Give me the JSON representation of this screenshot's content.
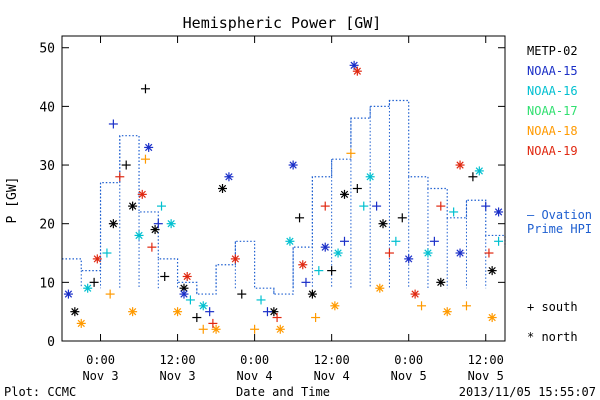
{
  "chart_data": {
    "type": "scatter",
    "title": "Hemispheric Power [GW]",
    "ylabel": "P [GW]",
    "xlabel": "Date and Time",
    "ylim": [
      0,
      52
    ],
    "yticks": [
      0,
      10,
      20,
      30,
      40,
      50
    ],
    "xlim": [
      "2013-11-02 18:00",
      "2013-11-05 15:00"
    ],
    "xticks": [
      {
        "x": "2013-11-03 00:00",
        "time": "0:00",
        "date": "Nov 3"
      },
      {
        "x": "2013-11-03 12:00",
        "time": "12:00",
        "date": "Nov 3"
      },
      {
        "x": "2013-11-04 00:00",
        "time": "0:00",
        "date": "Nov 4"
      },
      {
        "x": "2013-11-04 12:00",
        "time": "12:00",
        "date": "Nov 4"
      },
      {
        "x": "2013-11-05 00:00",
        "time": "0:00",
        "date": "Nov 5"
      },
      {
        "x": "2013-11-05 12:00",
        "time": "12:00",
        "date": "Nov 5"
      }
    ],
    "legend_placement": "right",
    "ovation": {
      "name": "Ovation Prime HPI",
      "label_lines": [
        "— Ovation",
        "Prime HPI"
      ],
      "color": "#1e5fd0",
      "style": "dotted-step",
      "x": [
        "2013-11-02 18:00",
        "2013-11-02 21:00",
        "2013-11-03 00:00",
        "2013-11-03 03:00",
        "2013-11-03 06:00",
        "2013-11-03 09:00",
        "2013-11-03 12:00",
        "2013-11-03 15:00",
        "2013-11-03 18:00",
        "2013-11-03 21:00",
        "2013-11-04 00:00",
        "2013-11-04 03:00",
        "2013-11-04 06:00",
        "2013-11-04 09:00",
        "2013-11-04 12:00",
        "2013-11-04 15:00",
        "2013-11-04 18:00",
        "2013-11-04 21:00",
        "2013-11-05 00:00",
        "2013-11-05 03:00",
        "2013-11-05 06:00",
        "2013-11-05 09:00",
        "2013-11-05 12:00",
        "2013-11-05 15:00"
      ],
      "y": [
        14,
        12,
        27,
        35,
        22,
        14,
        10,
        8,
        13,
        17,
        9,
        8,
        16,
        28,
        31,
        38,
        40,
        41,
        28,
        26,
        21,
        24,
        18,
        16
      ]
    },
    "series": [
      {
        "name": "METP-02",
        "color": "#000000"
      },
      {
        "name": "NOAA-15",
        "color": "#1a2fc8"
      },
      {
        "name": "NOAA-16",
        "color": "#00c0d0"
      },
      {
        "name": "NOAA-17",
        "color": "#30e070"
      },
      {
        "name": "NOAA-18",
        "color": "#ff9a00"
      },
      {
        "name": "NOAA-19",
        "color": "#e02810"
      }
    ],
    "marker_legend": [
      {
        "symbol": "+",
        "label": "south"
      },
      {
        "symbol": "*",
        "label": "north"
      }
    ],
    "points": [
      {
        "s": 0,
        "m": "*",
        "x": "2013-11-02 20:00",
        "y": 5
      },
      {
        "s": 0,
        "m": "+",
        "x": "2013-11-02 23:00",
        "y": 10
      },
      {
        "s": 0,
        "m": "*",
        "x": "2013-11-03 02:00",
        "y": 20
      },
      {
        "s": 0,
        "m": "+",
        "x": "2013-11-03 04:00",
        "y": 30
      },
      {
        "s": 0,
        "m": "*",
        "x": "2013-11-03 05:00",
        "y": 23
      },
      {
        "s": 0,
        "m": "+",
        "x": "2013-11-03 07:00",
        "y": 43
      },
      {
        "s": 0,
        "m": "*",
        "x": "2013-11-03 08:30",
        "y": 19
      },
      {
        "s": 0,
        "m": "+",
        "x": "2013-11-03 10:00",
        "y": 11
      },
      {
        "s": 0,
        "m": "*",
        "x": "2013-11-03 13:00",
        "y": 9
      },
      {
        "s": 0,
        "m": "+",
        "x": "2013-11-03 15:00",
        "y": 4
      },
      {
        "s": 0,
        "m": "*",
        "x": "2013-11-03 19:00",
        "y": 26
      },
      {
        "s": 0,
        "m": "+",
        "x": "2013-11-03 22:00",
        "y": 8
      },
      {
        "s": 0,
        "m": "*",
        "x": "2013-11-04 03:00",
        "y": 5
      },
      {
        "s": 0,
        "m": "+",
        "x": "2013-11-04 07:00",
        "y": 21
      },
      {
        "s": 0,
        "m": "*",
        "x": "2013-11-04 09:00",
        "y": 8
      },
      {
        "s": 0,
        "m": "+",
        "x": "2013-11-04 12:00",
        "y": 12
      },
      {
        "s": 0,
        "m": "*",
        "x": "2013-11-04 14:00",
        "y": 25
      },
      {
        "s": 0,
        "m": "+",
        "x": "2013-11-04 16:00",
        "y": 26
      },
      {
        "s": 0,
        "m": "*",
        "x": "2013-11-04 20:00",
        "y": 20
      },
      {
        "s": 0,
        "m": "+",
        "x": "2013-11-04 23:00",
        "y": 21
      },
      {
        "s": 0,
        "m": "*",
        "x": "2013-11-05 05:00",
        "y": 10
      },
      {
        "s": 0,
        "m": "+",
        "x": "2013-11-05 10:00",
        "y": 28
      },
      {
        "s": 0,
        "m": "*",
        "x": "2013-11-05 13:00",
        "y": 12
      },
      {
        "s": 1,
        "m": "*",
        "x": "2013-11-02 19:00",
        "y": 8
      },
      {
        "s": 1,
        "m": "+",
        "x": "2013-11-03 02:00",
        "y": 37
      },
      {
        "s": 1,
        "m": "*",
        "x": "2013-11-03 07:30",
        "y": 33
      },
      {
        "s": 1,
        "m": "+",
        "x": "2013-11-03 09:00",
        "y": 20
      },
      {
        "s": 1,
        "m": "*",
        "x": "2013-11-03 13:00",
        "y": 8
      },
      {
        "s": 1,
        "m": "+",
        "x": "2013-11-03 17:00",
        "y": 5
      },
      {
        "s": 1,
        "m": "*",
        "x": "2013-11-03 20:00",
        "y": 28
      },
      {
        "s": 1,
        "m": "+",
        "x": "2013-11-04 02:00",
        "y": 5
      },
      {
        "s": 1,
        "m": "*",
        "x": "2013-11-04 06:00",
        "y": 30
      },
      {
        "s": 1,
        "m": "+",
        "x": "2013-11-04 08:00",
        "y": 10
      },
      {
        "s": 1,
        "m": "*",
        "x": "2013-11-04 11:00",
        "y": 16
      },
      {
        "s": 1,
        "m": "+",
        "x": "2013-11-04 14:00",
        "y": 17
      },
      {
        "s": 1,
        "m": "*",
        "x": "2013-11-04 15:30",
        "y": 47
      },
      {
        "s": 1,
        "m": "+",
        "x": "2013-11-04 19:00",
        "y": 23
      },
      {
        "s": 1,
        "m": "*",
        "x": "2013-11-05 00:00",
        "y": 14
      },
      {
        "s": 1,
        "m": "+",
        "x": "2013-11-05 04:00",
        "y": 17
      },
      {
        "s": 1,
        "m": "*",
        "x": "2013-11-05 08:00",
        "y": 15
      },
      {
        "s": 1,
        "m": "+",
        "x": "2013-11-05 12:00",
        "y": 23
      },
      {
        "s": 1,
        "m": "*",
        "x": "2013-11-05 14:00",
        "y": 22
      },
      {
        "s": 2,
        "m": "*",
        "x": "2013-11-02 22:00",
        "y": 9
      },
      {
        "s": 2,
        "m": "+",
        "x": "2013-11-03 01:00",
        "y": 15
      },
      {
        "s": 2,
        "m": "*",
        "x": "2013-11-03 06:00",
        "y": 18
      },
      {
        "s": 2,
        "m": "+",
        "x": "2013-11-03 09:30",
        "y": 23
      },
      {
        "s": 2,
        "m": "*",
        "x": "2013-11-03 11:00",
        "y": 20
      },
      {
        "s": 2,
        "m": "+",
        "x": "2013-11-03 14:00",
        "y": 7
      },
      {
        "s": 2,
        "m": "*",
        "x": "2013-11-03 16:00",
        "y": 6
      },
      {
        "s": 2,
        "m": "+",
        "x": "2013-11-04 01:00",
        "y": 7
      },
      {
        "s": 2,
        "m": "*",
        "x": "2013-11-04 05:30",
        "y": 17
      },
      {
        "s": 2,
        "m": "+",
        "x": "2013-11-04 10:00",
        "y": 12
      },
      {
        "s": 2,
        "m": "*",
        "x": "2013-11-04 13:00",
        "y": 15
      },
      {
        "s": 2,
        "m": "+",
        "x": "2013-11-04 17:00",
        "y": 23
      },
      {
        "s": 2,
        "m": "*",
        "x": "2013-11-04 18:00",
        "y": 28
      },
      {
        "s": 2,
        "m": "+",
        "x": "2013-11-04 22:00",
        "y": 17
      },
      {
        "s": 2,
        "m": "*",
        "x": "2013-11-05 03:00",
        "y": 15
      },
      {
        "s": 2,
        "m": "+",
        "x": "2013-11-05 07:00",
        "y": 22
      },
      {
        "s": 2,
        "m": "*",
        "x": "2013-11-05 11:00",
        "y": 29
      },
      {
        "s": 2,
        "m": "+",
        "x": "2013-11-05 14:00",
        "y": 17
      },
      {
        "s": 4,
        "m": "*",
        "x": "2013-11-02 21:00",
        "y": 3
      },
      {
        "s": 4,
        "m": "+",
        "x": "2013-11-03 01:30",
        "y": 8
      },
      {
        "s": 4,
        "m": "*",
        "x": "2013-11-03 05:00",
        "y": 5
      },
      {
        "s": 4,
        "m": "+",
        "x": "2013-11-03 07:00",
        "y": 31
      },
      {
        "s": 4,
        "m": "*",
        "x": "2013-11-03 12:00",
        "y": 5
      },
      {
        "s": 4,
        "m": "+",
        "x": "2013-11-03 16:00",
        "y": 2
      },
      {
        "s": 4,
        "m": "*",
        "x": "2013-11-03 18:00",
        "y": 2
      },
      {
        "s": 4,
        "m": "+",
        "x": "2013-11-04 00:00",
        "y": 2
      },
      {
        "s": 4,
        "m": "*",
        "x": "2013-11-04 04:00",
        "y": 2
      },
      {
        "s": 4,
        "m": "+",
        "x": "2013-11-04 09:30",
        "y": 4
      },
      {
        "s": 4,
        "m": "*",
        "x": "2013-11-04 12:30",
        "y": 6
      },
      {
        "s": 4,
        "m": "+",
        "x": "2013-11-04 15:00",
        "y": 32
      },
      {
        "s": 4,
        "m": "*",
        "x": "2013-11-04 19:30",
        "y": 9
      },
      {
        "s": 4,
        "m": "+",
        "x": "2013-11-05 02:00",
        "y": 6
      },
      {
        "s": 4,
        "m": "*",
        "x": "2013-11-05 06:00",
        "y": 5
      },
      {
        "s": 4,
        "m": "+",
        "x": "2013-11-05 09:00",
        "y": 6
      },
      {
        "s": 4,
        "m": "*",
        "x": "2013-11-05 13:00",
        "y": 4
      },
      {
        "s": 5,
        "m": "*",
        "x": "2013-11-02 23:30",
        "y": 14
      },
      {
        "s": 5,
        "m": "+",
        "x": "2013-11-03 03:00",
        "y": 28
      },
      {
        "s": 5,
        "m": "*",
        "x": "2013-11-03 06:30",
        "y": 25
      },
      {
        "s": 5,
        "m": "+",
        "x": "2013-11-03 08:00",
        "y": 16
      },
      {
        "s": 5,
        "m": "*",
        "x": "2013-11-03 13:30",
        "y": 11
      },
      {
        "s": 5,
        "m": "+",
        "x": "2013-11-03 17:30",
        "y": 3
      },
      {
        "s": 5,
        "m": "*",
        "x": "2013-11-03 21:00",
        "y": 14
      },
      {
        "s": 5,
        "m": "+",
        "x": "2013-11-04 03:30",
        "y": 4
      },
      {
        "s": 5,
        "m": "*",
        "x": "2013-11-04 07:30",
        "y": 13
      },
      {
        "s": 5,
        "m": "+",
        "x": "2013-11-04 11:00",
        "y": 23
      },
      {
        "s": 5,
        "m": "*",
        "x": "2013-11-04 16:00",
        "y": 46
      },
      {
        "s": 5,
        "m": "+",
        "x": "2013-11-04 21:00",
        "y": 15
      },
      {
        "s": 5,
        "m": "*",
        "x": "2013-11-05 01:00",
        "y": 8
      },
      {
        "s": 5,
        "m": "+",
        "x": "2013-11-05 05:00",
        "y": 23
      },
      {
        "s": 5,
        "m": "*",
        "x": "2013-11-05 08:00",
        "y": 30
      },
      {
        "s": 5,
        "m": "+",
        "x": "2013-11-05 12:30",
        "y": 15
      }
    ]
  },
  "footer": {
    "left": "Plot: CCMC",
    "center": "Date and Time",
    "right": "2013/11/05 15:55:07"
  }
}
